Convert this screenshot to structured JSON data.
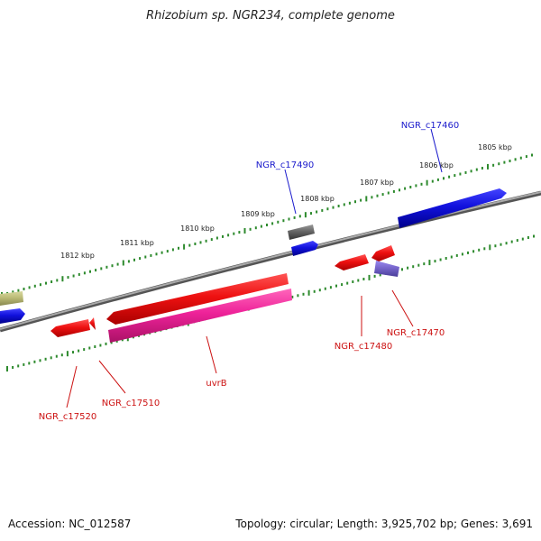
{
  "title": "Rhizobium sp. NGR234, complete genome",
  "accession": "Accession: NC_012587",
  "summary": "Topology: circular; Length: 3,925,702 bp; Genes: 3,691",
  "colors": {
    "backbone": "#888888",
    "tick": "#2d8a2d",
    "tick_label": "#222222",
    "label_blue": "#1a1acc",
    "label_red": "#cc1111",
    "gene_red": "#ee1111",
    "gene_blue": "#1111dd",
    "gene_pink": "#ee2299",
    "gene_gray": "#666666",
    "gene_olive": "#bbbb77",
    "gene_purple": "#7766cc"
  },
  "tick_labels": [
    "1812 kbp",
    "1811 kbp",
    "1810 kbp",
    "1809 kbp",
    "1808 kbp",
    "1807 kbp",
    "1806 kbp",
    "1805 kbp"
  ],
  "gene_labels": [
    {
      "text": "NGR_c17460",
      "color": "blue"
    },
    {
      "text": "NGR_c17490",
      "color": "blue"
    },
    {
      "text": "uvrB",
      "color": "red"
    },
    {
      "text": "NGR_c17470",
      "color": "red"
    },
    {
      "text": "NGR_c17480",
      "color": "red"
    },
    {
      "text": "NGR_c17510",
      "color": "red"
    },
    {
      "text": "NGR_c17520",
      "color": "red"
    }
  ]
}
